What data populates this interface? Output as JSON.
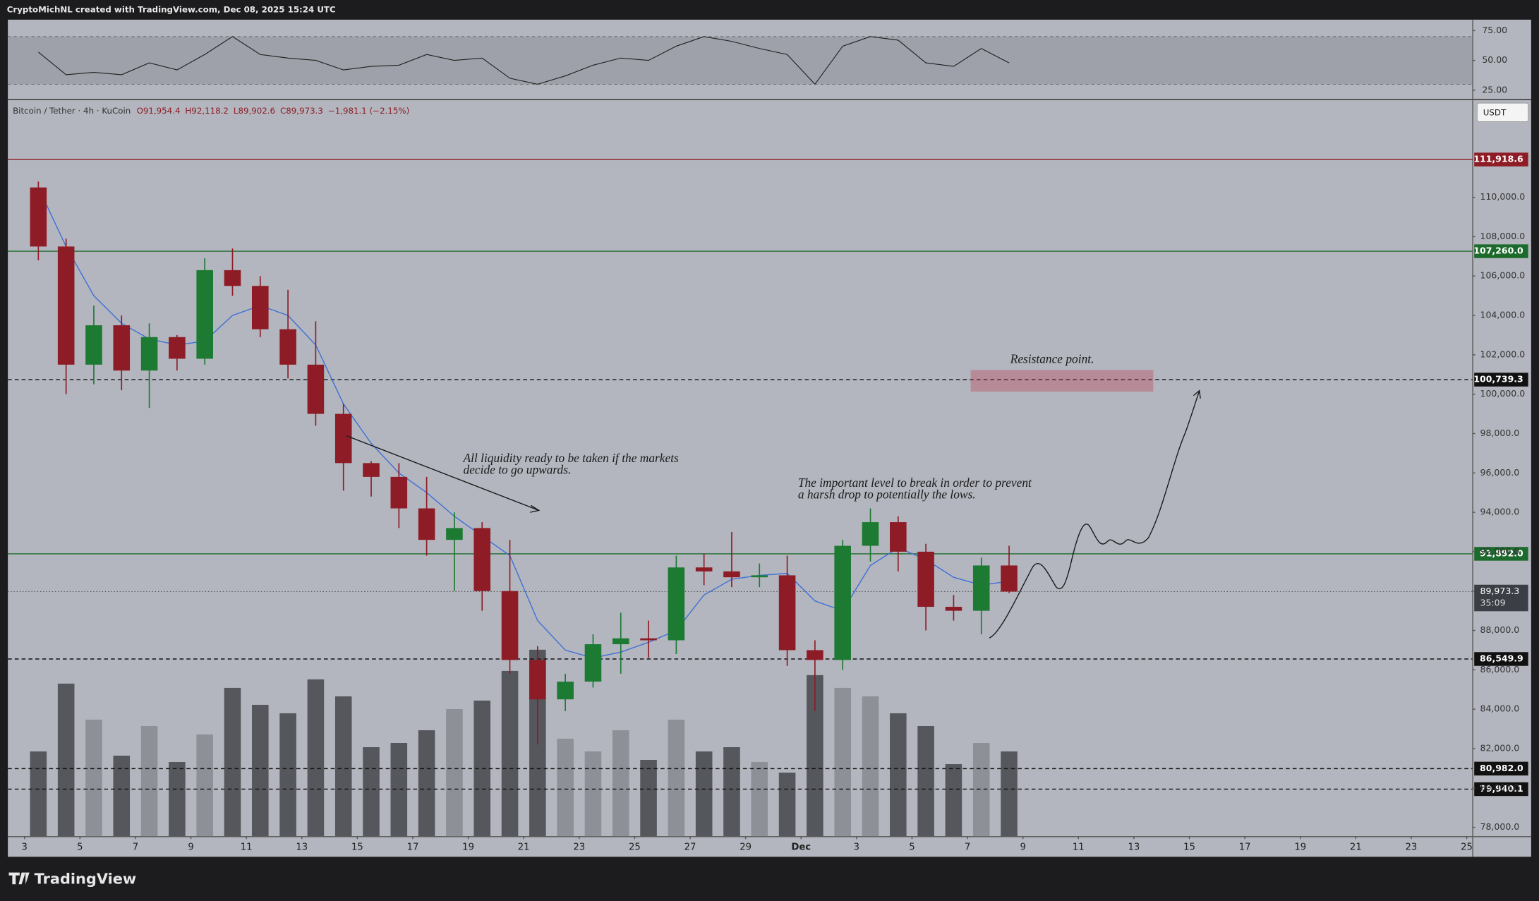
{
  "header": {
    "credit": "CryptoMichNL created with TradingView.com, Dec 08, 2025 15:24 UTC"
  },
  "chart_data": {
    "type": "candlestick",
    "symbol": "Bitcoin / Tether · 4h · KuCoin",
    "ohlc_labels": [
      "O91,954.4",
      "H92,118.2",
      "L89,902.6",
      "C89,973.3"
    ],
    "change_label": "−1,981.1 (−2.15%)",
    "currency": "USDT",
    "x": [
      0,
      1,
      2,
      3,
      4,
      5,
      6,
      7,
      8,
      9,
      10,
      11,
      12,
      13,
      14,
      15,
      16,
      17,
      18,
      19,
      20,
      21,
      22,
      23,
      24,
      25,
      26,
      27,
      28,
      29,
      30,
      31,
      32,
      33,
      34,
      35
    ],
    "open": [
      110500,
      107500,
      101500,
      103500,
      101200,
      102900,
      101800,
      106300,
      105500,
      103300,
      101500,
      99000,
      96500,
      95800,
      94200,
      92600,
      93200,
      90000,
      86500,
      84500,
      85400,
      87300,
      87600,
      87500,
      91200,
      91000,
      90700,
      90800,
      87000,
      86500,
      92300,
      93500,
      92000,
      89200,
      89000,
      91300
    ],
    "high": [
      110800,
      107900,
      104500,
      104000,
      103600,
      103000,
      106900,
      107400,
      106000,
      105300,
      103700,
      99500,
      96600,
      96500,
      95800,
      94000,
      93500,
      92600,
      87200,
      85800,
      87800,
      88900,
      88500,
      91800,
      91900,
      93000,
      91400,
      91800,
      87500,
      92600,
      94200,
      93800,
      92400,
      89800,
      91700,
      92300
    ],
    "low": [
      106800,
      100000,
      100500,
      100200,
      99300,
      101200,
      101500,
      105000,
      102900,
      100800,
      98400,
      95100,
      94800,
      93200,
      91800,
      90000,
      89000,
      85800,
      82200,
      83900,
      85100,
      85800,
      86600,
      86800,
      90300,
      90200,
      90200,
      86200,
      83900,
      86000,
      91500,
      91000,
      88000,
      88500,
      87800,
      89900
    ],
    "close": [
      107500,
      101500,
      103500,
      101200,
      102900,
      101800,
      106300,
      105500,
      103300,
      101500,
      99000,
      96500,
      95800,
      94200,
      92600,
      93200,
      90000,
      86500,
      84500,
      85400,
      87300,
      87600,
      87500,
      91200,
      91000,
      90700,
      90800,
      87000,
      86500,
      92300,
      93500,
      92000,
      89200,
      89000,
      91300,
      89973.3
    ],
    "volume": [
      40,
      72,
      55,
      38,
      52,
      35,
      48,
      70,
      62,
      58,
      74,
      66,
      42,
      44,
      50,
      60,
      64,
      78,
      88,
      46,
      40,
      50,
      36,
      55,
      40,
      42,
      35,
      30,
      76,
      70,
      66,
      58,
      52,
      34,
      44,
      40
    ],
    "up_color": "#1d7a33",
    "down_color": "#8e1c26",
    "volume_up_color": "#8d9097",
    "volume_down_color": "#55575c",
    "ema": {
      "color": "#3c6fd8",
      "values": [
        110500,
        107500,
        105000,
        103600,
        102800,
        102500,
        102700,
        104000,
        104500,
        104000,
        102500,
        99500,
        97500,
        96000,
        95000,
        93800,
        92800,
        91800,
        88500,
        87000,
        86600,
        86900,
        87400,
        88000,
        89800,
        90600,
        90800,
        90900,
        89500,
        89000,
        91300,
        92200,
        91600,
        90700,
        90300,
        90500
      ]
    },
    "rsi": {
      "color": "#1f1f1f",
      "band": [
        30,
        70
      ],
      "band_color": "#9ea1a9",
      "values": [
        57,
        38,
        40,
        38,
        48,
        42,
        55,
        70,
        55,
        52,
        50,
        42,
        45,
        46,
        55,
        50,
        52,
        35,
        30,
        37,
        46,
        52,
        50,
        62,
        70,
        66,
        60,
        55,
        30,
        62,
        70,
        67,
        48,
        45,
        60,
        48
      ],
      "ylim": [
        17.5,
        84.2
      ],
      "yticks": [
        {
          "value": 75,
          "label": "75.00"
        },
        {
          "value": 50,
          "label": "50.00"
        },
        {
          "value": 25,
          "label": "25.00"
        }
      ]
    },
    "xlim": [
      -0.6,
      52.2
    ],
    "xticks": [
      {
        "value": 0,
        "label": "3"
      },
      {
        "value": 2,
        "label": "5"
      },
      {
        "value": 4,
        "label": "7"
      },
      {
        "value": 6,
        "label": "9"
      },
      {
        "value": 8,
        "label": "11"
      },
      {
        "value": 10,
        "label": "13"
      },
      {
        "value": 12,
        "label": "15"
      },
      {
        "value": 14,
        "label": "17"
      },
      {
        "value": 16,
        "label": "19"
      },
      {
        "value": 18,
        "label": "21"
      },
      {
        "value": 20,
        "label": "23"
      },
      {
        "value": 22,
        "label": "25"
      },
      {
        "value": 24,
        "label": "27"
      },
      {
        "value": 26,
        "label": "29"
      },
      {
        "value": 28,
        "label": "Dec"
      },
      {
        "value": 30,
        "label": "3"
      },
      {
        "value": 32,
        "label": "5"
      },
      {
        "value": 34,
        "label": "7"
      },
      {
        "value": 36,
        "label": "9"
      },
      {
        "value": 38,
        "label": "11"
      },
      {
        "value": 40,
        "label": "13"
      },
      {
        "value": 42,
        "label": "15"
      },
      {
        "value": 44,
        "label": "17"
      },
      {
        "value": 46,
        "label": "19"
      },
      {
        "value": 48,
        "label": "21"
      },
      {
        "value": 50,
        "label": "23"
      },
      {
        "value": 52,
        "label": "25"
      }
    ],
    "ylim": [
      77550,
      114885
    ],
    "yticks": [
      {
        "value": 78000,
        "label": "78,000.0"
      },
      {
        "value": 80000,
        "label": "80,000.0"
      },
      {
        "value": 82000,
        "label": "82,000.0"
      },
      {
        "value": 84000,
        "label": "84,000.0"
      },
      {
        "value": 86000,
        "label": "86,000.0"
      },
      {
        "value": 88000,
        "label": "88,000.0"
      },
      {
        "value": 90000,
        "label": "90,000.0"
      },
      {
        "value": 92000,
        "label": "92,000.0"
      },
      {
        "value": 94000,
        "label": "94,000.0"
      },
      {
        "value": 96000,
        "label": "96,000.0"
      },
      {
        "value": 98000,
        "label": "98,000.0"
      },
      {
        "value": 100000,
        "label": "100,000.0"
      },
      {
        "value": 102000,
        "label": "102,000.0"
      },
      {
        "value": 104000,
        "label": "104,000.0"
      },
      {
        "value": 106000,
        "label": "106,000.0"
      },
      {
        "value": 108000,
        "label": "108,000.0"
      },
      {
        "value": 110000,
        "label": "110,000.0"
      }
    ],
    "levels": [
      {
        "value": 111918.6,
        "label": "111,918.6",
        "color": "#8e1c26",
        "style": "solid"
      },
      {
        "value": 107260,
        "label": "107,260.0",
        "color": "#1d6b2c",
        "style": "solid"
      },
      {
        "value": 100739.3,
        "label": "100,739.3",
        "color": "#111111",
        "style": "dashed"
      },
      {
        "value": 91892,
        "label": "91,892.0",
        "color": "#1d6b2c",
        "style": "solid"
      },
      {
        "value": 86549.9,
        "label": "86,549.9",
        "color": "#111111",
        "style": "dashed"
      },
      {
        "value": 80982,
        "label": "80,982.0",
        "color": "#111111",
        "style": "dashed"
      },
      {
        "value": 79940.1,
        "label": "79,940.1",
        "color": "#111111",
        "style": "dashed"
      }
    ],
    "last_price": {
      "value": 89973.3,
      "label": "89,973.3",
      "countdown": "35:09",
      "color": "#3b3e45"
    },
    "annotations": {
      "liquidity": [
        "All liquidity ready to be taken if the markets",
        "decide to go upwards."
      ],
      "level": [
        "The important level to break in order to prevent",
        "a harsh drop to potentially the lows."
      ],
      "resistance": "Resistance point."
    }
  },
  "footer": {
    "brand": "TradingView"
  }
}
